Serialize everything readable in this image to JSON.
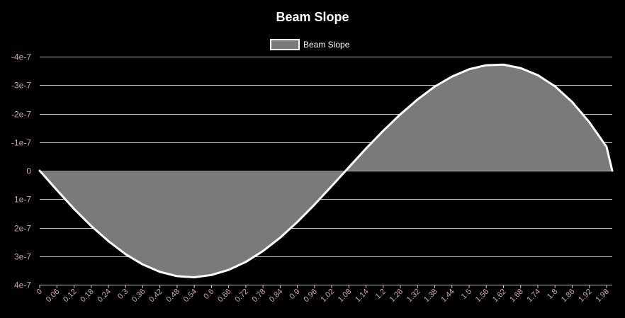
{
  "chart_data": {
    "type": "area",
    "title": "Beam Slope",
    "legend": {
      "position": "top-center",
      "entries": [
        "Beam Slope"
      ]
    },
    "xlabel": "",
    "ylabel": "",
    "y_reversed": true,
    "ylim": [
      -4e-07,
      4e-07
    ],
    "y_ticks": [
      {
        "value": -4e-07,
        "label": "-4e-7"
      },
      {
        "value": -3e-07,
        "label": "-3e-7"
      },
      {
        "value": -2e-07,
        "label": "-2e-7"
      },
      {
        "value": -1e-07,
        "label": "-1e-7"
      },
      {
        "value": 0,
        "label": "0"
      },
      {
        "value": 1e-07,
        "label": "1e-7"
      },
      {
        "value": 2e-07,
        "label": "2e-7"
      },
      {
        "value": 3e-07,
        "label": "3e-7"
      },
      {
        "value": 4e-07,
        "label": "4e-7"
      }
    ],
    "x_tick_labels": [
      "0",
      "0.06",
      "0.12",
      "0.18",
      "0.24",
      "0.3",
      "0.36",
      "0.42",
      "0.48",
      "0.54",
      "0.6",
      "0.66",
      "0.72",
      "0.78",
      "0.84",
      "0.9",
      "0.96",
      "1.02",
      "1.08",
      "1.14",
      "1.2",
      "1.26",
      "1.32",
      "1.38",
      "1.44",
      "1.5",
      "1.56",
      "1.62",
      "1.68",
      "1.74",
      "1.8",
      "1.86",
      "1.92",
      "1.98"
    ],
    "grid": true,
    "colors": {
      "line": "#ffffff",
      "fill": "#7a7a7a",
      "grid": "#bdbdbd",
      "tick_text": "#c9a9a6",
      "background": "#000000"
    },
    "series": [
      {
        "name": "Beam Slope",
        "x": [
          0,
          0.06,
          0.12,
          0.18,
          0.24,
          0.3,
          0.36,
          0.42,
          0.48,
          0.54,
          0.6,
          0.66,
          0.72,
          0.78,
          0.84,
          0.9,
          0.96,
          1.02,
          1.08,
          1.14,
          1.2,
          1.26,
          1.32,
          1.38,
          1.44,
          1.5,
          1.56,
          1.62,
          1.68,
          1.74,
          1.8,
          1.86,
          1.92,
          1.98,
          2.0
        ],
        "values": [
          0,
          6.8e-08,
          1.34e-07,
          1.94e-07,
          2.47e-07,
          2.93e-07,
          3.29e-07,
          3.55e-07,
          3.7e-07,
          3.74e-07,
          3.66e-07,
          3.48e-07,
          3.2e-07,
          2.82e-07,
          2.35e-07,
          1.8e-07,
          1.19e-07,
          5.4e-08,
          -1.2e-08,
          -7.8e-08,
          -1.4e-07,
          -1.98e-07,
          -2.5e-07,
          -2.95e-07,
          -3.3e-07,
          -3.56e-07,
          -3.7e-07,
          -3.72e-07,
          -3.6e-07,
          -3.35e-07,
          -2.96e-07,
          -2.41e-07,
          -1.7e-07,
          -8.4e-08,
          0
        ]
      }
    ]
  }
}
